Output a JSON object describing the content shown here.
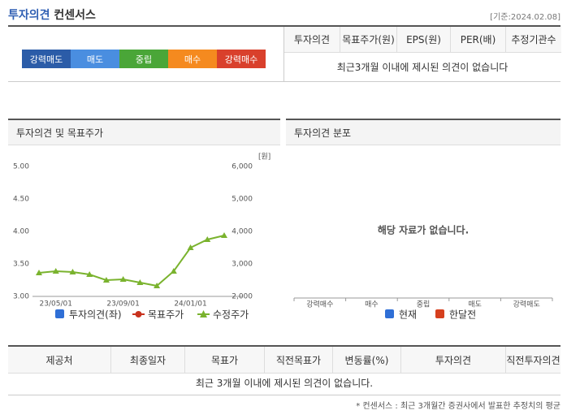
{
  "header": {
    "title_main": "투자의견",
    "title_sub": "컨센서스",
    "date": "[기준:2024.02.08]"
  },
  "summary": {
    "buttons": [
      {
        "label": "강력매도",
        "color": "#2b5ca8"
      },
      {
        "label": "매도",
        "color": "#4a8ee0"
      },
      {
        "label": "중립",
        "color": "#4aa638"
      },
      {
        "label": "매수",
        "color": "#f58a1f"
      },
      {
        "label": "강력매수",
        "color": "#d9402c"
      }
    ],
    "columns": [
      "투자의견",
      "목표주가(원)",
      "EPS(원)",
      "PER(배)",
      "추정기관수"
    ],
    "message": "최근3개월 이내에 제시된 의견이 없습니다"
  },
  "chart_data": [
    {
      "type": "line",
      "title": "투자의견 및 목표주가",
      "y2_unit": "[원]",
      "categories": [
        null,
        "23/05/01",
        null,
        null,
        null,
        "23/09/01",
        null,
        null,
        null,
        "24/01/01",
        null,
        null
      ],
      "ylim": [
        3,
        5
      ],
      "yticks": [
        {
          "value": 3,
          "label": "3.00"
        },
        {
          "value": 3.5,
          "label": "3.50"
        },
        {
          "value": 4,
          "label": "4.00"
        },
        {
          "value": 4.5,
          "label": "4.50"
        },
        {
          "value": 5,
          "label": "5.00"
        }
      ],
      "y2lim": [
        2000,
        6000
      ],
      "y2ticks": [
        {
          "value": 2000,
          "label": "2,000"
        },
        {
          "value": 3000,
          "label": "3,000"
        },
        {
          "value": 4000,
          "label": "4,000"
        },
        {
          "value": 5000,
          "label": "5,000"
        },
        {
          "value": 6000,
          "label": "6,000"
        }
      ],
      "grid": false,
      "series": [
        {
          "name": "투자의견(좌)",
          "color": "#2f6fd6",
          "marker": "square",
          "values": [
            null,
            null,
            null,
            null,
            null,
            null,
            null,
            null,
            null,
            null,
            null,
            null
          ]
        },
        {
          "name": "목표주가",
          "color": "#c8321e",
          "marker": "circle",
          "axis": "y2",
          "values": [
            null,
            null,
            null,
            null,
            null,
            null,
            null,
            null,
            null,
            null,
            null,
            null
          ]
        },
        {
          "name": "수정주가",
          "color": "#7ab32e",
          "marker": "triangle",
          "axis": "y2",
          "values": [
            2725,
            2775,
            2750,
            2675,
            2500,
            2525,
            2425,
            2325,
            2775,
            3500,
            3750,
            3875
          ]
        }
      ]
    },
    {
      "type": "bar",
      "title": "투자의견 분포",
      "annotation": "해당 자료가 없습니다.",
      "categories": [
        "강력매수",
        "매수",
        "중립",
        "매도",
        "강력매도"
      ],
      "series": [
        {
          "name": "현재",
          "color": "#2f6fd6",
          "values": [
            null,
            null,
            null,
            null,
            null
          ]
        },
        {
          "name": "한달전",
          "color": "#d6401e",
          "values": [
            null,
            null,
            null,
            null,
            null
          ]
        }
      ]
    }
  ],
  "table": {
    "columns": [
      "제공처",
      "최종일자",
      "목표가",
      "직전목표가",
      "변동률(%)",
      "투자의견",
      "직전투자의견"
    ],
    "message": "최근 3개월 이내에 제시된 의견이 없습니다."
  },
  "footnote": "* 컨센서스 : 최근 3개월간 증권사에서 발표한 추정치의 평균"
}
